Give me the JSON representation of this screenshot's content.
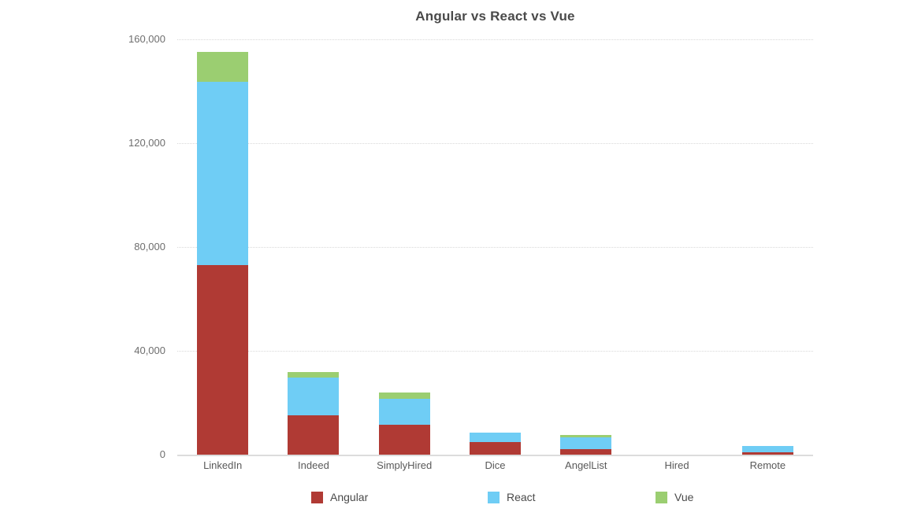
{
  "chart_data": {
    "type": "bar",
    "stacked": true,
    "title": "Angular vs React vs Vue",
    "xlabel": "",
    "ylabel": "",
    "categories": [
      "LinkedIn",
      "Indeed",
      "SimplyHired",
      "Dice",
      "AngelList",
      "Hired",
      "Remote"
    ],
    "series": [
      {
        "name": "Angular",
        "color": "#b03a34",
        "values": [
          73000,
          15200,
          11600,
          4800,
          2000,
          0,
          800
        ]
      },
      {
        "name": "React",
        "color": "#6fcdf5",
        "values": [
          70500,
          14600,
          9900,
          3800,
          4600,
          0,
          2400
        ]
      },
      {
        "name": "Vue",
        "color": "#9bce71",
        "values": [
          11800,
          2000,
          2300,
          0,
          900,
          0,
          0
        ]
      }
    ],
    "ylim": [
      0,
      160000
    ],
    "yticks": [
      {
        "value": 0,
        "label": "0"
      },
      {
        "value": 40000,
        "label": "40,000"
      },
      {
        "value": 80000,
        "label": "80,000"
      },
      {
        "value": 120000,
        "label": "120,000"
      },
      {
        "value": 160000,
        "label": "160,000"
      }
    ],
    "grid": "horizontal-dotted",
    "legend_position": "bottom"
  },
  "colors": {
    "background": "#ffffff",
    "title_text": "#4a4a4a",
    "axis_text": "#6e6e6e",
    "category_text": "#595959",
    "gridline": "#d9d9d9",
    "baseline": "#dcdcdc"
  }
}
